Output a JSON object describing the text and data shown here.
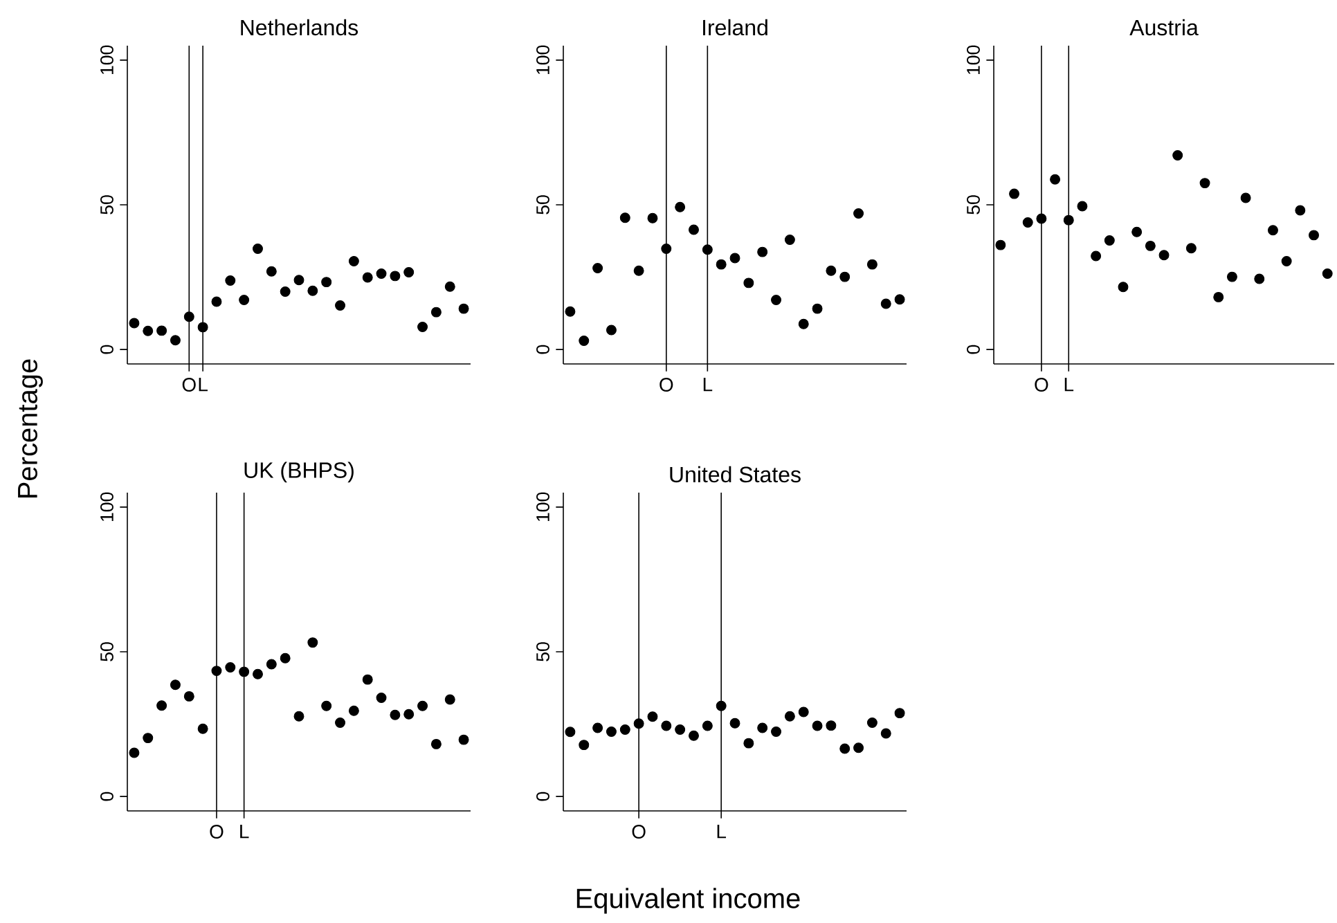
{
  "chart_data": [
    {
      "type": "scatter",
      "title": "Netherlands",
      "ylabel": "Percentage",
      "ylim": [
        -5,
        105
      ],
      "yticks": [
        0,
        50,
        100
      ],
      "marker": "circle",
      "color": "#000000",
      "categories": [
        null,
        null,
        null,
        null,
        "O",
        "L",
        null,
        null,
        null,
        null,
        null,
        null,
        null,
        null,
        null,
        null,
        null,
        null,
        null,
        null,
        null,
        null,
        null,
        null,
        null
      ],
      "values": [
        9.1,
        6.4,
        6.5,
        3.2,
        11.3,
        7.7,
        16.5,
        23.8,
        17.1,
        34.8,
        27.0,
        20.0,
        24.0,
        20.3,
        23.3,
        15.2,
        30.5,
        24.9,
        26.2,
        25.4,
        26.7,
        7.8,
        12.9,
        21.7,
        14.1
      ],
      "ref_lines": [
        {
          "axis": "x",
          "value": "O"
        },
        {
          "axis": "x",
          "value": "L"
        }
      ]
    },
    {
      "type": "scatter",
      "title": "Ireland",
      "ylim": [
        -5,
        105
      ],
      "yticks": [
        0,
        50,
        100
      ],
      "marker": "circle",
      "color": "#000000",
      "categories": [
        null,
        null,
        null,
        null,
        null,
        null,
        null,
        "O",
        null,
        null,
        "L",
        null,
        null,
        null,
        null,
        null,
        null,
        null,
        null,
        null,
        null,
        null,
        null,
        null,
        null
      ],
      "values": [
        13.1,
        3.0,
        28.1,
        6.7,
        45.5,
        27.2,
        45.4,
        34.8,
        49.2,
        41.4,
        34.5,
        29.4,
        31.6,
        23.0,
        33.7,
        17.1,
        37.9,
        8.8,
        14.1,
        27.2,
        25.1,
        47.0,
        29.4,
        15.8,
        17.3
      ],
      "ref_lines": [
        {
          "axis": "x",
          "value": "O"
        },
        {
          "axis": "x",
          "value": "L"
        }
      ]
    },
    {
      "type": "scatter",
      "title": "Austria",
      "ylim": [
        -5,
        105
      ],
      "yticks": [
        0,
        50,
        100
      ],
      "marker": "circle",
      "color": "#000000",
      "categories": [
        null,
        null,
        null,
        "O",
        null,
        "L",
        null,
        null,
        null,
        null,
        null,
        null,
        null,
        null,
        null,
        null,
        null,
        null,
        null,
        null,
        null,
        null,
        null,
        null,
        null
      ],
      "values": [
        36.1,
        53.8,
        43.9,
        45.2,
        58.8,
        44.7,
        49.5,
        32.3,
        37.7,
        21.6,
        40.6,
        35.8,
        32.6,
        67.1,
        35.0,
        57.5,
        18.1,
        25.1,
        52.4,
        24.4,
        41.2,
        30.5,
        48.1,
        39.5,
        26.2
      ],
      "ref_lines": [
        {
          "axis": "x",
          "value": "O"
        },
        {
          "axis": "x",
          "value": "L"
        }
      ]
    },
    {
      "type": "scatter",
      "title": "UK (BHPS)",
      "ylim": [
        -5,
        105
      ],
      "yticks": [
        0,
        50,
        100
      ],
      "marker": "circle",
      "color": "#000000",
      "categories": [
        null,
        null,
        null,
        null,
        null,
        null,
        "O",
        null,
        "L",
        null,
        null,
        null,
        null,
        null,
        null,
        null,
        null,
        null,
        null,
        null,
        null,
        null,
        null,
        null,
        null
      ],
      "values": [
        15.1,
        20.2,
        31.4,
        38.6,
        34.6,
        23.4,
        43.4,
        44.6,
        43.1,
        42.3,
        45.7,
        47.8,
        27.7,
        53.2,
        31.3,
        25.5,
        29.6,
        40.4,
        34.1,
        28.2,
        28.4,
        31.3,
        18.1,
        33.5,
        19.6
      ],
      "ref_lines": [
        {
          "axis": "x",
          "value": "O"
        },
        {
          "axis": "x",
          "value": "L"
        }
      ]
    },
    {
      "type": "scatter",
      "title": "United States",
      "xlabel": "Equivalent income",
      "ylim": [
        -5,
        105
      ],
      "yticks": [
        0,
        50,
        100
      ],
      "marker": "circle",
      "color": "#000000",
      "categories": [
        null,
        null,
        null,
        null,
        null,
        "O",
        null,
        null,
        null,
        null,
        null,
        "L",
        null,
        null,
        null,
        null,
        null,
        null,
        null,
        null,
        null,
        null,
        null,
        null,
        null
      ],
      "values": [
        22.3,
        17.8,
        23.7,
        22.4,
        23.1,
        25.2,
        27.6,
        24.4,
        23.1,
        21.0,
        24.4,
        31.3,
        25.3,
        18.4,
        23.7,
        22.4,
        27.7,
        29.2,
        24.4,
        24.5,
        16.5,
        16.8,
        25.5,
        21.8,
        28.8
      ],
      "ref_lines": [
        {
          "axis": "x",
          "value": "O"
        },
        {
          "axis": "x",
          "value": "L"
        }
      ]
    }
  ]
}
